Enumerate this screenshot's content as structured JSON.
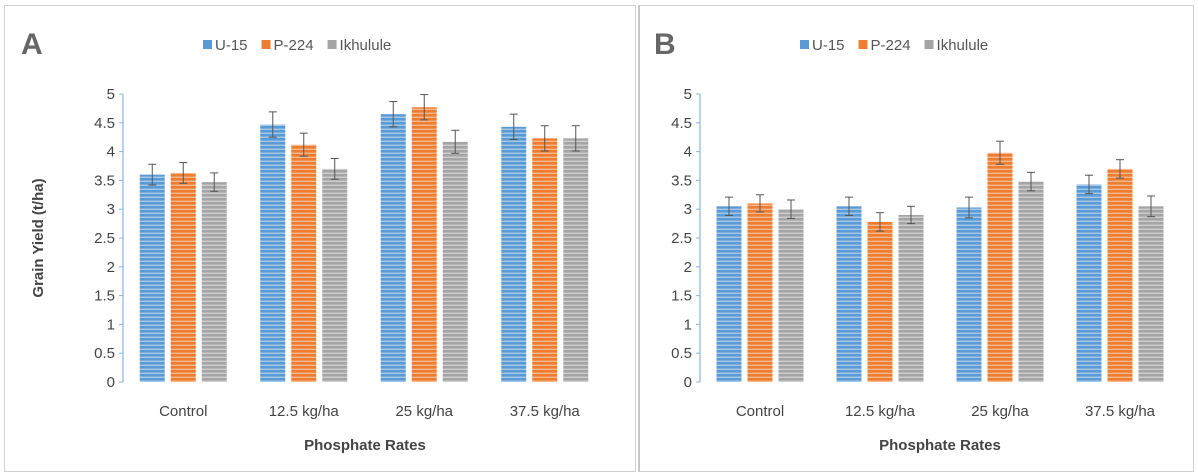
{
  "chart_data": [
    {
      "type": "bar",
      "panel_label": "A",
      "categories": [
        "Control",
        "12.5 kg/ha",
        "25 kg/ha",
        "37.5 kg/ha"
      ],
      "series": [
        {
          "name": "U-15",
          "color": "#5b9bd5",
          "values": [
            3.6,
            4.47,
            4.65,
            4.43
          ],
          "errors": [
            0.18,
            0.22,
            0.22,
            0.22
          ]
        },
        {
          "name": "P-224",
          "color": "#ed7d31",
          "values": [
            3.63,
            4.12,
            4.77,
            4.23
          ],
          "errors": [
            0.18,
            0.2,
            0.22,
            0.22
          ]
        },
        {
          "name": "Ikhulule",
          "color": "#a5a5a5",
          "values": [
            3.47,
            3.7,
            4.17,
            4.23
          ],
          "errors": [
            0.16,
            0.18,
            0.2,
            0.22
          ]
        }
      ],
      "yticks": [
        "0",
        "0.5",
        "1",
        "1.5",
        "2",
        "2.5",
        "3",
        "3.5",
        "4",
        "4.5",
        "5"
      ],
      "ylim": [
        0,
        5
      ],
      "xlabel": "Phosphate Rates",
      "ylabel": "Grain Yield (t/ha)",
      "legend_position": "top-center",
      "grid": false
    },
    {
      "type": "bar",
      "panel_label": "B",
      "categories": [
        "Control",
        "12.5 kg/ha",
        "25 kg/ha",
        "37.5 kg/ha"
      ],
      "series": [
        {
          "name": "U-15",
          "color": "#5b9bd5",
          "values": [
            3.05,
            3.05,
            3.03,
            3.43
          ],
          "errors": [
            0.16,
            0.16,
            0.18,
            0.16
          ]
        },
        {
          "name": "P-224",
          "color": "#ed7d31",
          "values": [
            3.1,
            2.78,
            3.98,
            3.7
          ],
          "errors": [
            0.15,
            0.16,
            0.2,
            0.16
          ]
        },
        {
          "name": "Ikhulule",
          "color": "#a5a5a5",
          "values": [
            3.0,
            2.9,
            3.48,
            3.05
          ],
          "errors": [
            0.16,
            0.15,
            0.16,
            0.18
          ]
        }
      ],
      "yticks": [
        "0",
        "0.5",
        "1",
        "1.5",
        "2",
        "2.5",
        "3",
        "3.5",
        "4",
        "4.5",
        "5"
      ],
      "ylim": [
        0,
        5
      ],
      "xlabel": "Phosphate Rates",
      "ylabel": "",
      "legend_position": "top-center",
      "grid": false
    }
  ]
}
